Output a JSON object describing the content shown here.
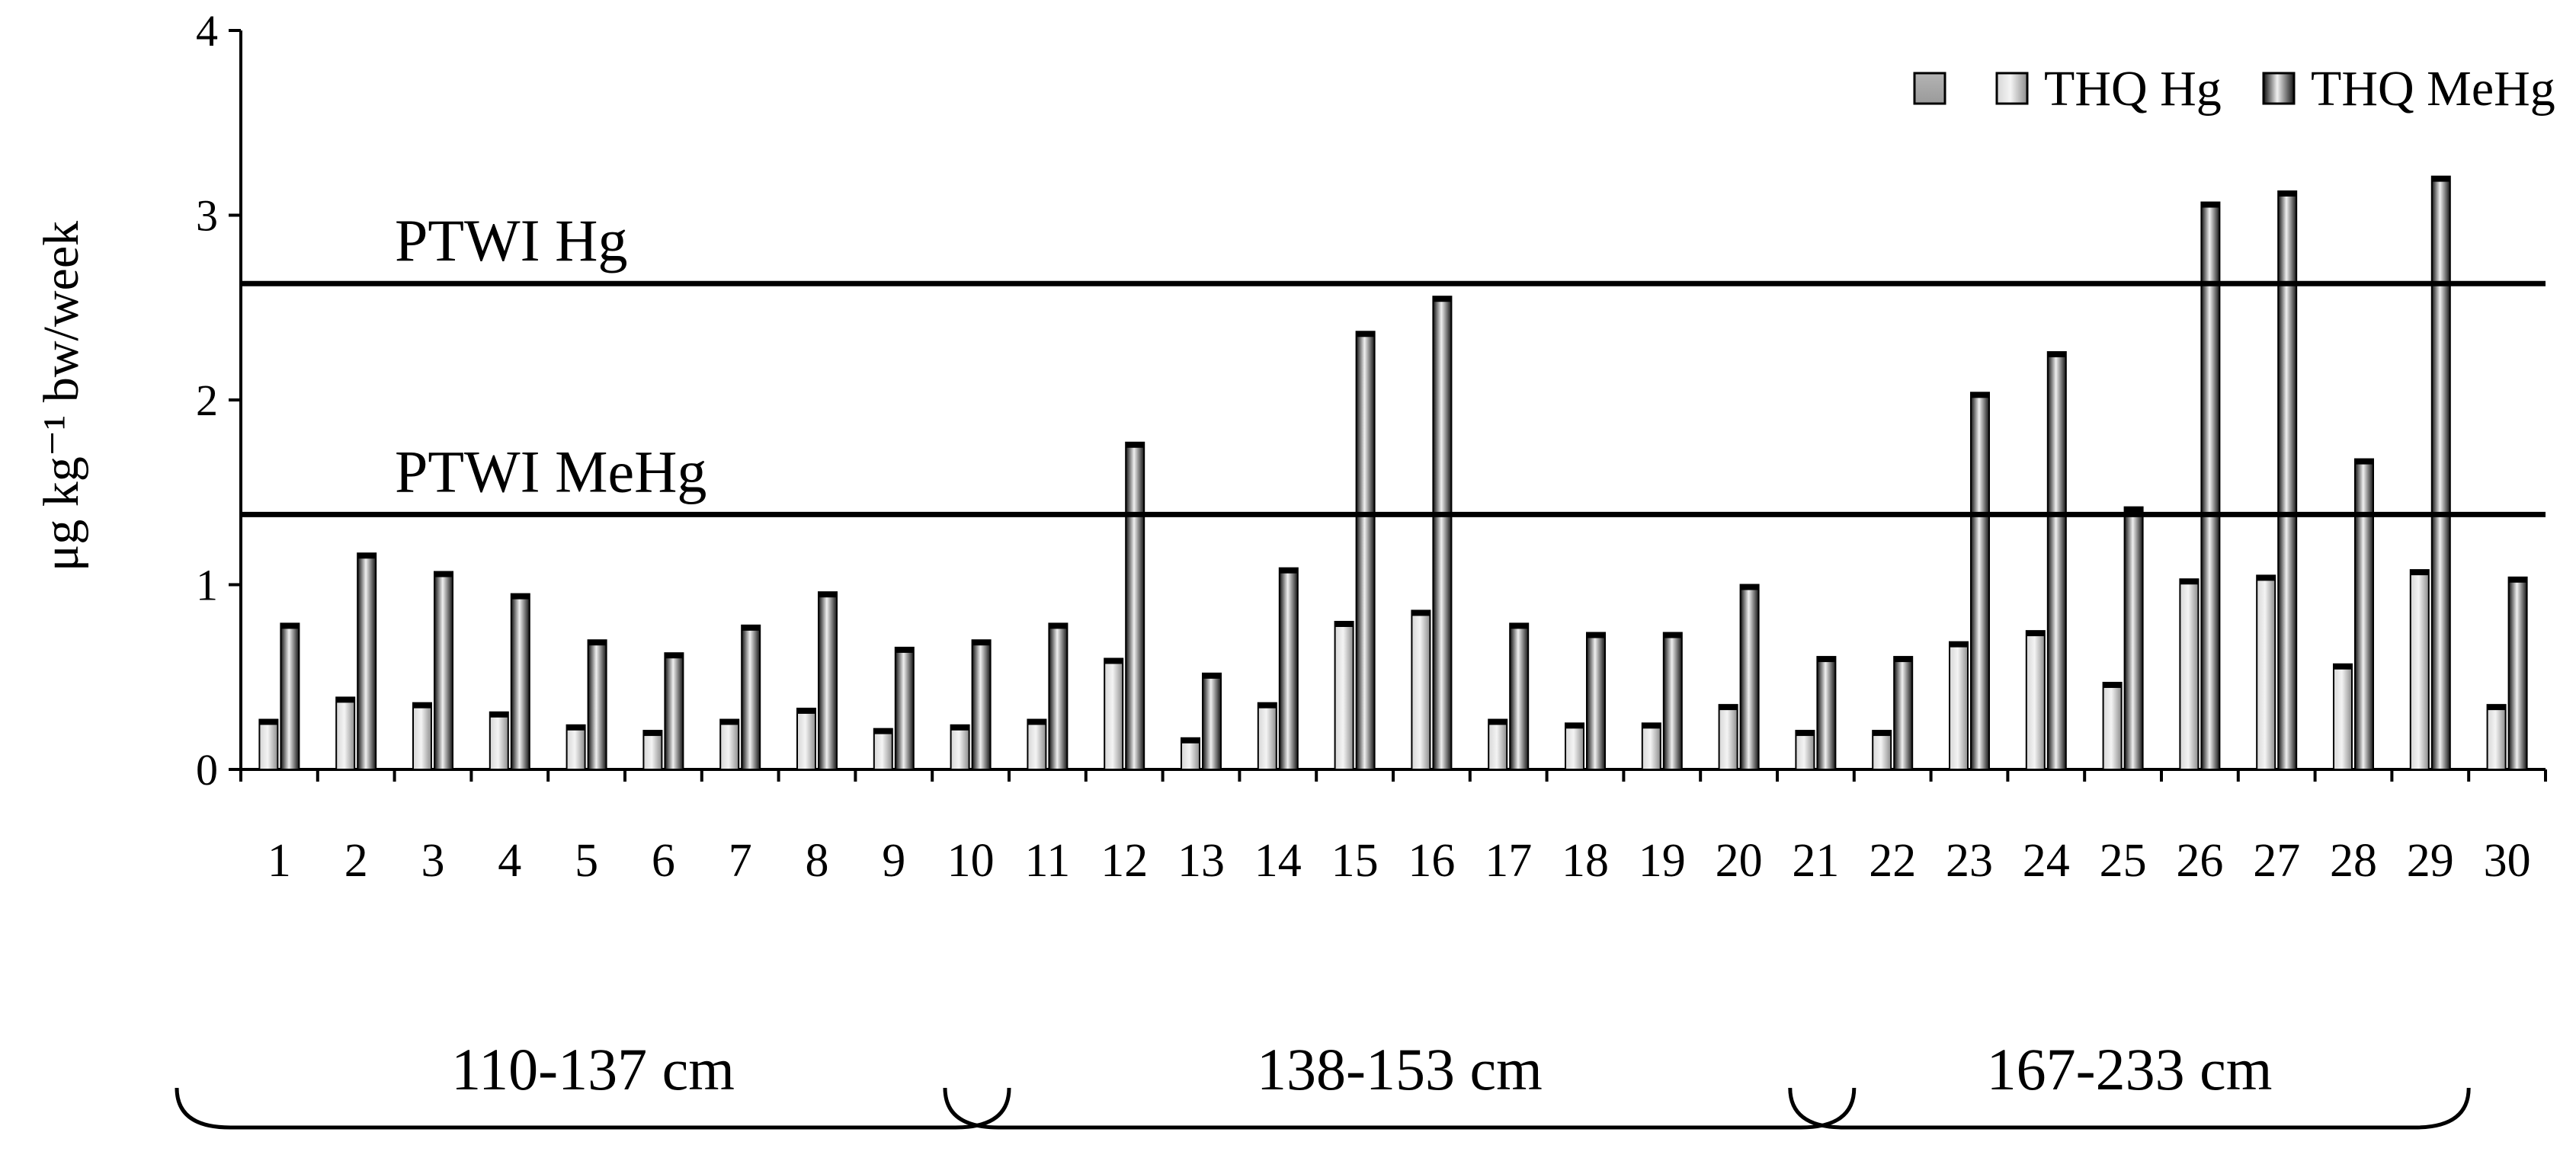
{
  "chart_data": {
    "type": "bar",
    "ylabel": "μg kg⁻¹ bw/week",
    "ylim": [
      0,
      4
    ],
    "yticks": [
      "0",
      "1",
      "2",
      "3",
      "4"
    ],
    "categories": [
      "1",
      "2",
      "3",
      "4",
      "5",
      "6",
      "7",
      "8",
      "9",
      "10",
      "11",
      "12",
      "13",
      "14",
      "15",
      "16",
      "17",
      "18",
      "19",
      "20",
      "21",
      "22",
      "23",
      "24",
      "25",
      "26",
      "27",
      "28",
      "29",
      "30"
    ],
    "series": [
      {
        "name": "THQ Hg",
        "color": "#b8b8b8",
        "values": [
          0.27,
          0.39,
          0.36,
          0.31,
          0.24,
          0.21,
          0.27,
          0.33,
          0.22,
          0.24,
          0.27,
          0.6,
          0.17,
          0.36,
          0.8,
          0.86,
          0.27,
          0.25,
          0.25,
          0.35,
          0.21,
          0.21,
          0.69,
          0.75,
          0.47,
          1.03,
          1.05,
          0.57,
          1.08,
          0.35
        ]
      },
      {
        "name": "THQ MeHg",
        "color": "#2a2a2a",
        "values": [
          0.79,
          1.17,
          1.07,
          0.95,
          0.7,
          0.63,
          0.78,
          0.96,
          0.66,
          0.7,
          0.79,
          1.77,
          0.52,
          1.09,
          2.37,
          2.56,
          0.79,
          0.74,
          0.74,
          1.0,
          0.61,
          0.61,
          2.04,
          2.26,
          1.42,
          3.07,
          3.13,
          1.68,
          3.21,
          1.04
        ]
      }
    ],
    "reference_lines": [
      {
        "label": "PTWI Hg",
        "value": 2.63
      },
      {
        "label": "PTWI MeHg",
        "value": 1.38
      }
    ],
    "groups": [
      {
        "label": "110-137 cm",
        "from": 1,
        "to": 10
      },
      {
        "label": "138-153 cm",
        "from": 11,
        "to": 21
      },
      {
        "label": "167-233 cm",
        "from": 22,
        "to": 29
      }
    ],
    "legend": {
      "position": "top-right",
      "entries": [
        "",
        "THQ Hg",
        "THQ MeHg"
      ]
    },
    "grid": false
  }
}
